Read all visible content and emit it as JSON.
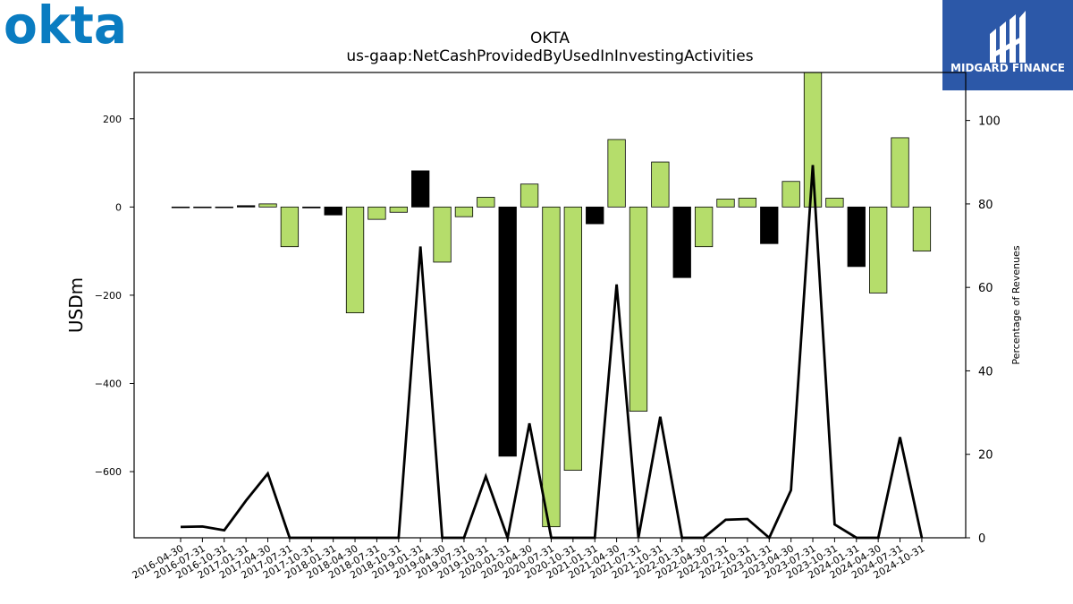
{
  "brand": {
    "company_logo_text": "okta",
    "company_logo_color": "#0a7cc1",
    "publisher_logo_text": "MIDGARD FINANCE",
    "publisher_logo_bg": "#2c58a8"
  },
  "chart_data": {
    "type": "bar",
    "title": "OKTA",
    "subtitle": "us-gaap:NetCashProvidedByUsedInInvestingActivities",
    "ylabel": "USDm",
    "y2label": "Percentage of Revenues",
    "ylim": [
      -750,
      305
    ],
    "y2lim": [
      0,
      111.5
    ],
    "yticks": [
      200,
      0,
      -200,
      -400,
      -600
    ],
    "yticklabels": [
      "200",
      "0",
      "−200",
      "−400",
      "−600"
    ],
    "y2ticks": [
      0,
      20,
      40,
      60,
      80,
      100
    ],
    "y2ticklabels": [
      "0",
      "20",
      "40",
      "60",
      "80",
      "100"
    ],
    "categories": [
      "2016-04-30",
      "2016-07-31",
      "2016-10-31",
      "2017-01-31",
      "2017-04-30",
      "2017-07-31",
      "2017-10-31",
      "2018-01-31",
      "2018-04-30",
      "2018-07-31",
      "2018-10-31",
      "2019-01-31",
      "2019-04-30",
      "2019-07-31",
      "2019-10-31",
      "2020-01-31",
      "2020-04-30",
      "2020-07-31",
      "2020-10-31",
      "2021-01-31",
      "2021-04-30",
      "2021-07-31",
      "2021-10-31",
      "2022-01-31",
      "2022-04-30",
      "2022-07-31",
      "2022-10-31",
      "2023-01-31",
      "2023-04-30",
      "2023-07-31",
      "2023-10-31",
      "2024-01-31",
      "2024-04-30",
      "2024-07-31",
      "2024-10-31"
    ],
    "series": [
      {
        "kind": "bar",
        "values": [
          -1,
          -1,
          -1,
          3,
          7,
          -90,
          -2,
          -18,
          -240,
          -28,
          -12,
          82,
          -125,
          -22,
          22,
          -565,
          52,
          -725,
          -597,
          -38,
          153,
          -463,
          102,
          -160,
          -90,
          18,
          20,
          -83,
          58,
          350,
          20,
          -135,
          -195,
          157,
          -100
        ],
        "colors": [
          "black",
          "black",
          "black",
          "black",
          "green",
          "green",
          "black",
          "black",
          "green",
          "green",
          "green",
          "black",
          "green",
          "green",
          "green",
          "black",
          "green",
          "green",
          "green",
          "black",
          "green",
          "green",
          "green",
          "black",
          "green",
          "green",
          "green",
          "black",
          "green",
          "green",
          "green",
          "black",
          "green",
          "green",
          "green"
        ]
      },
      {
        "kind": "line",
        "values": [
          2.6,
          2.7,
          1.8,
          8.9,
          15.4,
          null,
          null,
          null,
          null,
          null,
          null,
          69.8,
          null,
          null,
          14.7,
          null,
          27.4,
          null,
          null,
          null,
          60.7,
          null,
          29.0,
          null,
          null,
          4.3,
          4.5,
          null,
          11.4,
          89.3,
          3.2,
          null,
          null,
          24.1,
          null
        ]
      }
    ],
    "colors": {
      "green": "#b5dd6b",
      "black": "#000000"
    }
  }
}
